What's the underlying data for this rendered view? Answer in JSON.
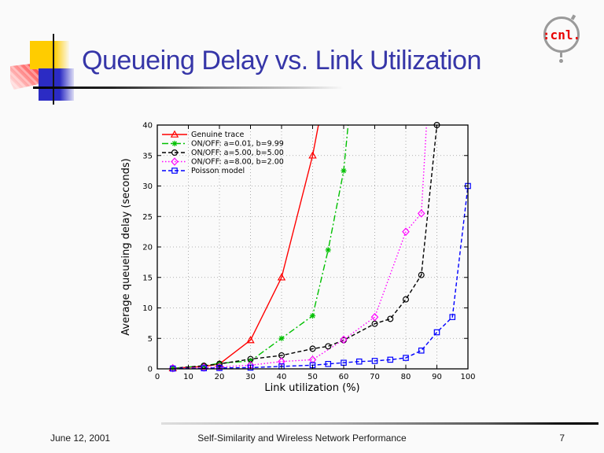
{
  "slide": {
    "title": "Queueing Delay vs. Link Utilization",
    "logo_text": ":cnl.",
    "footer": {
      "date": "June 12, 2001",
      "center": "Self-Similarity and Wireless Network Performance",
      "page_number": "7"
    }
  },
  "chart_data": {
    "type": "line",
    "title": "",
    "xlabel": "Link utilization (%)",
    "ylabel": "Average queueing delay (seconds)",
    "xlim": [
      0,
      100
    ],
    "ylim": [
      0,
      40
    ],
    "x_ticks": [
      0,
      10,
      20,
      30,
      40,
      50,
      60,
      70,
      80,
      90,
      100
    ],
    "y_ticks": [
      0,
      5,
      10,
      15,
      20,
      25,
      30,
      35,
      40
    ],
    "grid": true,
    "legend_position": "top-left",
    "series": [
      {
        "name": "Genuine trace",
        "color": "#ff0000",
        "marker": "triangle",
        "line_style": "solid",
        "points": [
          [
            5,
            0.1
          ],
          [
            15,
            0.4
          ],
          [
            20,
            0.8
          ],
          [
            30,
            4.7
          ],
          [
            40,
            15
          ],
          [
            50,
            35
          ],
          [
            53,
            43
          ]
        ]
      },
      {
        "name": "ON/OFF: a=0.01, b=9.99",
        "color": "#00c000",
        "marker": "star",
        "line_style": "dash-dot",
        "points": [
          [
            5,
            0.1
          ],
          [
            15,
            0.5
          ],
          [
            20,
            0.9
          ],
          [
            30,
            1.3
          ],
          [
            40,
            5
          ],
          [
            50,
            8.7
          ],
          [
            55,
            19.5
          ],
          [
            60,
            32.5
          ],
          [
            62,
            43
          ]
        ]
      },
      {
        "name": "ON/OFF: a=5.00, b=5.00",
        "color": "#000000",
        "marker": "circle",
        "line_style": "dashed",
        "points": [
          [
            5,
            0.1
          ],
          [
            15,
            0.5
          ],
          [
            20,
            0.8
          ],
          [
            30,
            1.6
          ],
          [
            40,
            2.2
          ],
          [
            50,
            3.3
          ],
          [
            55,
            3.7
          ],
          [
            60,
            4.7
          ],
          [
            70,
            7.4
          ],
          [
            75,
            8.2
          ],
          [
            80,
            11.4
          ],
          [
            85,
            15.4
          ],
          [
            90,
            40
          ]
        ]
      },
      {
        "name": "ON/OFF: a=8.00, b=2.00",
        "color": "#ff00ff",
        "marker": "diamond",
        "line_style": "dotted",
        "points": [
          [
            5,
            0.1
          ],
          [
            15,
            0.2
          ],
          [
            20,
            0.3
          ],
          [
            30,
            0.6
          ],
          [
            40,
            1.2
          ],
          [
            50,
            1.5
          ],
          [
            60,
            4.8
          ],
          [
            70,
            8.5
          ],
          [
            80,
            22.5
          ],
          [
            85,
            25.5
          ],
          [
            87,
            43
          ]
        ]
      },
      {
        "name": "Poisson model",
        "color": "#0000ff",
        "marker": "square",
        "line_style": "dashed",
        "points": [
          [
            5,
            0.05
          ],
          [
            15,
            0.1
          ],
          [
            20,
            0.15
          ],
          [
            30,
            0.2
          ],
          [
            40,
            0.4
          ],
          [
            50,
            0.6
          ],
          [
            55,
            0.8
          ],
          [
            60,
            1.0
          ],
          [
            65,
            1.2
          ],
          [
            70,
            1.3
          ],
          [
            75,
            1.5
          ],
          [
            80,
            1.8
          ],
          [
            85,
            3.0
          ],
          [
            90,
            6.0
          ],
          [
            95,
            8.5
          ],
          [
            100,
            30
          ]
        ]
      }
    ]
  }
}
